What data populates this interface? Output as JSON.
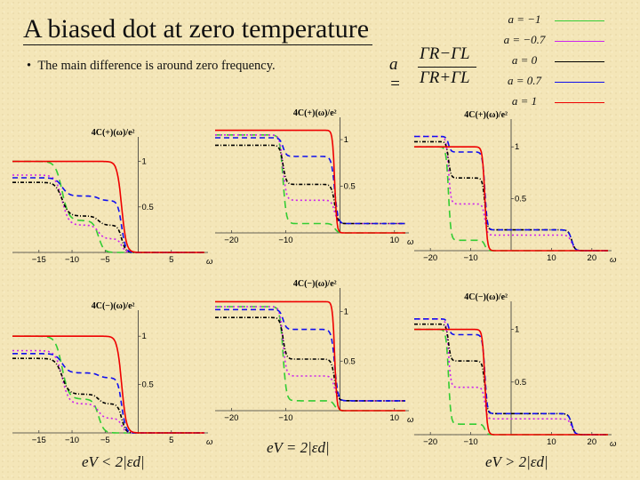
{
  "slide": {
    "title": "A biased dot at zero temperature",
    "bullet": "The main difference is around zero frequency.",
    "formula": {
      "lhs": "a =",
      "num": "ΓR−ΓL",
      "den": "ΓR+ΓL"
    }
  },
  "legend": [
    {
      "label": "a = −1",
      "color": "#33cc33",
      "dash": "8,5"
    },
    {
      "label": "a = −0.7",
      "color": "#cc22ee",
      "dash": "2,3"
    },
    {
      "label": "a = 0",
      "color": "#000000",
      "dash": "4,2,1,2"
    },
    {
      "label": "a = 0.7",
      "color": "#1010ee",
      "dash": "6,4"
    },
    {
      "label": "a = 1",
      "color": "#ee0000",
      "dash": ""
    }
  ],
  "footers": [
    "eV < 2|εd|",
    "eV = 2|εd|",
    "eV > 2|εd|"
  ],
  "chart_data": [
    {
      "type": "line",
      "row": 0,
      "col": 0,
      "ylabel": "4C(+)(ω)/e²",
      "xlabel": "ω",
      "xlim": [
        -19,
        10
      ],
      "ylim": [
        0,
        1.25
      ],
      "xticks": [
        -15,
        -10,
        -5,
        5
      ],
      "yticks": [
        0.5,
        1
      ],
      "series": [
        {
          "name": "a = −1",
          "steps": [
            [
              -11.5,
              0.65,
              0.5
            ],
            [
              -6,
              0.35,
              0.4
            ]
          ],
          "end": 0
        },
        {
          "name": "a = −0.7",
          "steps": [
            [
              -11.5,
              0.55,
              0.5
            ],
            [
              -6,
              0.15,
              0.4
            ],
            [
              -2.5,
              0.15,
              0.3
            ]
          ],
          "end": 0
        },
        {
          "name": "a = 0",
          "steps": [
            [
              -11.5,
              0.37,
              0.5
            ],
            [
              -6,
              0.1,
              0.4
            ],
            [
              -2.5,
              0.3,
              0.3
            ]
          ],
          "end": 0
        },
        {
          "name": "a = 0.7",
          "steps": [
            [
              -11.5,
              0.2,
              0.5
            ],
            [
              -6,
              0.05,
              0.4
            ],
            [
              -2.5,
              0.57,
              0.3
            ]
          ],
          "end": 0
        },
        {
          "name": "a = 1",
          "steps": [
            [
              -2.5,
              1.0,
              0.35
            ]
          ],
          "end": 0
        }
      ]
    },
    {
      "type": "line",
      "row": 0,
      "col": 1,
      "ylabel": "4C(+)(ω)/e²",
      "xlabel": "ω",
      "xlim": [
        -23,
        12
      ],
      "ylim": [
        0,
        1.22
      ],
      "xticks": [
        -20,
        -10,
        10
      ],
      "yticks": [
        0.5,
        1
      ],
      "series": [
        {
          "name": "a = −1",
          "steps": [
            [
              -10.5,
              0.95,
              0.3
            ],
            [
              -1,
              0.1,
              0.3
            ]
          ],
          "end": 0
        },
        {
          "name": "a = −0.7",
          "steps": [
            [
              -10.5,
              0.7,
              0.3
            ],
            [
              -1,
              0.25,
              0.3
            ]
          ],
          "end": 0.1
        },
        {
          "name": "a = 0",
          "steps": [
            [
              -10.5,
              0.42,
              0.3
            ],
            [
              -1,
              0.42,
              0.3
            ]
          ],
          "end": 0.1
        },
        {
          "name": "a = 0.7",
          "steps": [
            [
              -10.5,
              0.2,
              0.3
            ],
            [
              -1,
              0.72,
              0.3
            ]
          ],
          "end": 0.1
        },
        {
          "name": "a = 1",
          "steps": [
            [
              -1,
              1.1,
              0.2
            ]
          ],
          "end": 0
        }
      ]
    },
    {
      "type": "line",
      "row": 0,
      "col": 2,
      "ylabel": "4C(+)(ω)/e²",
      "xlabel": "ω",
      "xlim": [
        -24,
        24
      ],
      "ylim": [
        0,
        1.25
      ],
      "xticks": [
        -20,
        -10,
        10,
        20
      ],
      "yticks": [
        0.5,
        1
      ],
      "series": [
        {
          "name": "a = −1",
          "steps": [
            [
              -15.5,
              0.9,
              0.3
            ],
            [
              -6.5,
              0.1,
              0.3
            ]
          ],
          "end": 0
        },
        {
          "name": "a = −0.7",
          "steps": [
            [
              -15.5,
              0.65,
              0.3
            ],
            [
              -6.5,
              0.3,
              0.3
            ],
            [
              15,
              0.15,
              0.4
            ]
          ],
          "end": 0
        },
        {
          "name": "a = 0",
          "steps": [
            [
              -15.5,
              0.35,
              0.3
            ],
            [
              -6.5,
              0.5,
              0.3
            ],
            [
              15,
              0.2,
              0.4
            ]
          ],
          "end": 0
        },
        {
          "name": "a = 0.7",
          "steps": [
            [
              -15.5,
              0.15,
              0.3
            ],
            [
              -6.5,
              0.75,
              0.3
            ],
            [
              15,
              0.2,
              0.4
            ]
          ],
          "end": 0
        },
        {
          "name": "a = 1",
          "steps": [
            [
              -6.5,
              1.0,
              0.3
            ]
          ],
          "end": 0
        }
      ]
    },
    {
      "type": "line",
      "row": 1,
      "col": 0,
      "ylabel": "4C(−)(ω)/e²",
      "xlabel": "ω",
      "xlim": [
        -19,
        10
      ],
      "ylim": [
        0,
        1.25
      ],
      "xticks": [
        -15,
        -10,
        -5,
        5
      ],
      "yticks": [
        0.5,
        1
      ],
      "series": [
        {
          "name": "a = −1",
          "steps": [
            [
              -11.5,
              0.65,
              0.5
            ],
            [
              -6,
              0.35,
              0.4
            ]
          ],
          "end": 0
        },
        {
          "name": "a = −0.7",
          "steps": [
            [
              -11.5,
              0.55,
              0.5
            ],
            [
              -6,
              0.15,
              0.4
            ],
            [
              -2.5,
              0.15,
              0.3
            ]
          ],
          "end": 0
        },
        {
          "name": "a = 0",
          "steps": [
            [
              -11.5,
              0.37,
              0.5
            ],
            [
              -6,
              0.1,
              0.4
            ],
            [
              -2.5,
              0.3,
              0.3
            ]
          ],
          "end": 0
        },
        {
          "name": "a = 0.7",
          "steps": [
            [
              -11.5,
              0.2,
              0.5
            ],
            [
              -6,
              0.05,
              0.4
            ],
            [
              -2.5,
              0.57,
              0.3
            ]
          ],
          "end": 0
        },
        {
          "name": "a = 1",
          "steps": [
            [
              -2.5,
              1.0,
              0.35
            ]
          ],
          "end": 0
        }
      ]
    },
    {
      "type": "line",
      "row": 1,
      "col": 1,
      "ylabel": "4C(−)(ω)/e²",
      "xlabel": "ω",
      "xlim": [
        -23,
        12
      ],
      "ylim": [
        0,
        1.22
      ],
      "xticks": [
        -20,
        -10,
        10
      ],
      "yticks": [
        0.5,
        1
      ],
      "series": [
        {
          "name": "a = −1",
          "steps": [
            [
              -10.5,
              0.95,
              0.3
            ],
            [
              -1,
              0.1,
              0.3
            ]
          ],
          "end": 0
        },
        {
          "name": "a = −0.7",
          "steps": [
            [
              -10.5,
              0.7,
              0.3
            ],
            [
              -1,
              0.25,
              0.3
            ]
          ],
          "end": 0.1
        },
        {
          "name": "a = 0",
          "steps": [
            [
              -10.5,
              0.42,
              0.3
            ],
            [
              -1,
              0.42,
              0.3
            ]
          ],
          "end": 0.1
        },
        {
          "name": "a = 0.7",
          "steps": [
            [
              -10.5,
              0.2,
              0.3
            ],
            [
              -1,
              0.72,
              0.3
            ]
          ],
          "end": 0.1
        },
        {
          "name": "a = 1",
          "steps": [
            [
              -1,
              1.1,
              0.2
            ]
          ],
          "end": 0
        }
      ]
    },
    {
      "type": "line",
      "row": 1,
      "col": 2,
      "ylabel": "4C(−)(ω)/e²",
      "xlabel": "ω",
      "xlim": [
        -24,
        24
      ],
      "ylim": [
        0,
        1.25
      ],
      "xticks": [
        -20,
        -10,
        10,
        20
      ],
      "yticks": [
        0.5,
        1
      ],
      "series": [
        {
          "name": "a = −1",
          "steps": [
            [
              -15.5,
              0.9,
              0.3
            ],
            [
              -6.5,
              0.1,
              0.3
            ]
          ],
          "end": 0
        },
        {
          "name": "a = −0.7",
          "steps": [
            [
              -15.5,
              0.65,
              0.3
            ],
            [
              -6.5,
              0.3,
              0.3
            ],
            [
              15,
              0.15,
              0.4
            ]
          ],
          "end": 0
        },
        {
          "name": "a = 0",
          "steps": [
            [
              -15.5,
              0.35,
              0.3
            ],
            [
              -6.5,
              0.5,
              0.3
            ],
            [
              15,
              0.2,
              0.4
            ]
          ],
          "end": 0
        },
        {
          "name": "a = 0.7",
          "steps": [
            [
              -15.5,
              0.15,
              0.3
            ],
            [
              -6.5,
              0.75,
              0.3
            ],
            [
              15,
              0.2,
              0.4
            ]
          ],
          "end": 0
        },
        {
          "name": "a = 1",
          "steps": [
            [
              -6.5,
              1.0,
              0.3
            ]
          ],
          "end": 0
        }
      ]
    }
  ]
}
